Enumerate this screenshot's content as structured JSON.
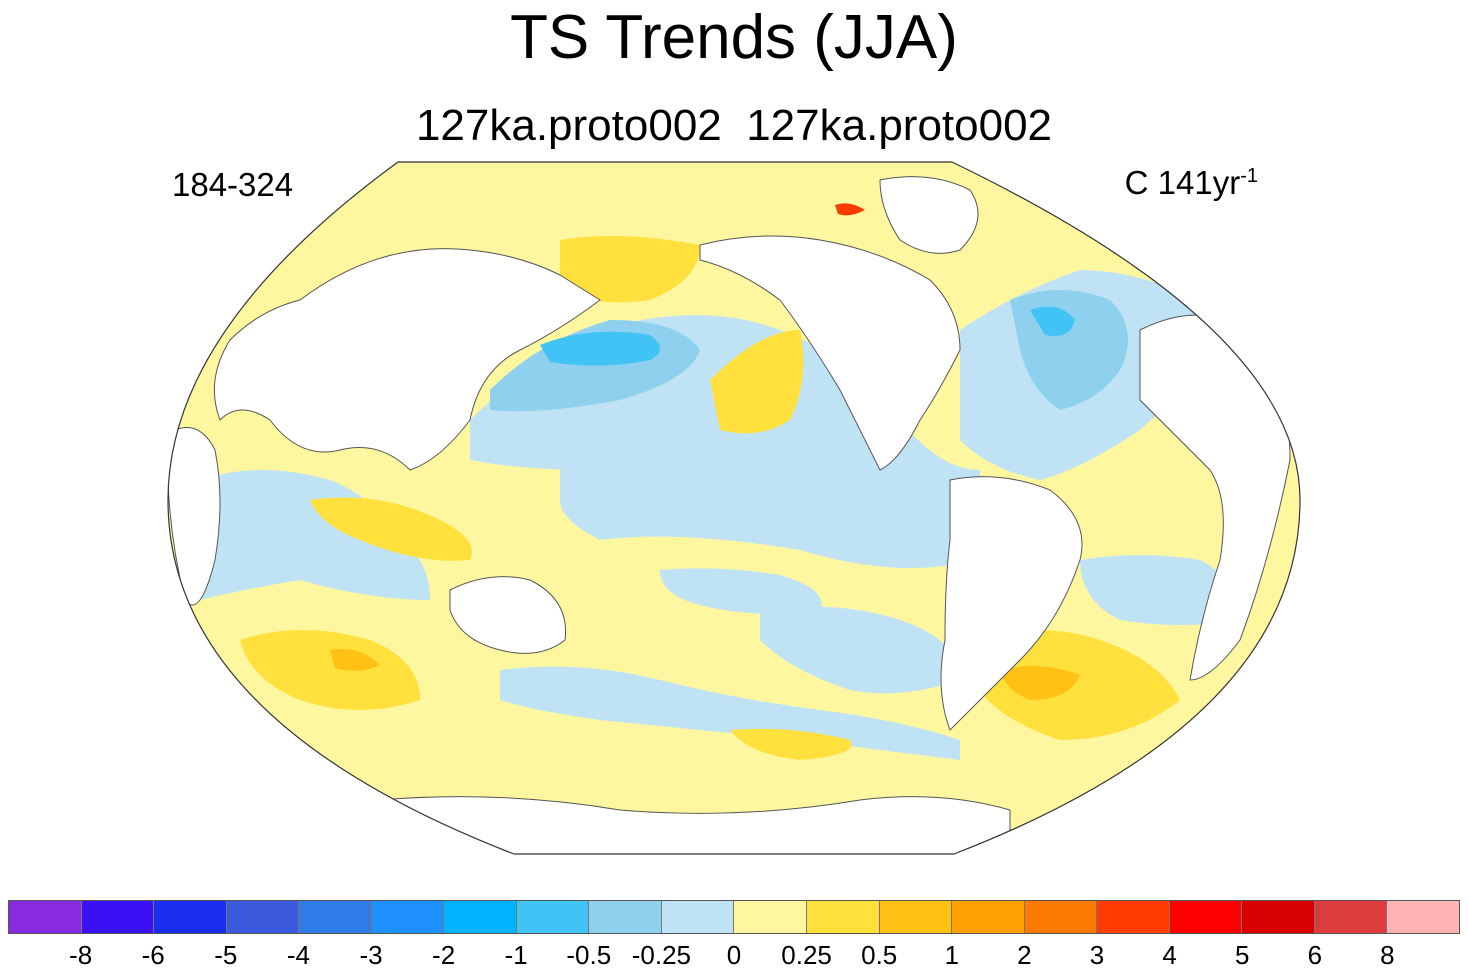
{
  "title": "TS Trends (JJA)",
  "subtitle": "127ka.proto002  127ka.proto002",
  "left_label": "184-324",
  "right_label": {
    "text": "C 141yr",
    "superscript": "-1"
  },
  "colorbar": {
    "colors": [
      "#8a2be2",
      "#3a10f5",
      "#1a2ef0",
      "#3c5ade",
      "#2f7ce8",
      "#1e90ff",
      "#00b4ff",
      "#41c4f5",
      "#8ed0ee",
      "#bfe3f5",
      "#fff7a0",
      "#ffe03c",
      "#ffc214",
      "#ffa000",
      "#ff7a00",
      "#ff3c00",
      "#ff0000",
      "#d80000",
      "#dc3c3c",
      "#ffb4b4"
    ],
    "labels": [
      "-8",
      "-6",
      "-5",
      "-4",
      "-3",
      "-2",
      "-1",
      "-0.5",
      "-0.25",
      "0",
      "0.25",
      "0.5",
      "1",
      "2",
      "3",
      "4",
      "5",
      "6",
      "8"
    ]
  },
  "map_colors": {
    "ocean_base": "#fff7a0",
    "light_blue": "#bfe3f5",
    "mid_blue": "#8ed0ee",
    "blue": "#41c4f5",
    "yellow": "#ffe03c",
    "orange": "#ffc214",
    "red": "#ff3c00",
    "land": "#ffffff",
    "coast": "#555555"
  }
}
